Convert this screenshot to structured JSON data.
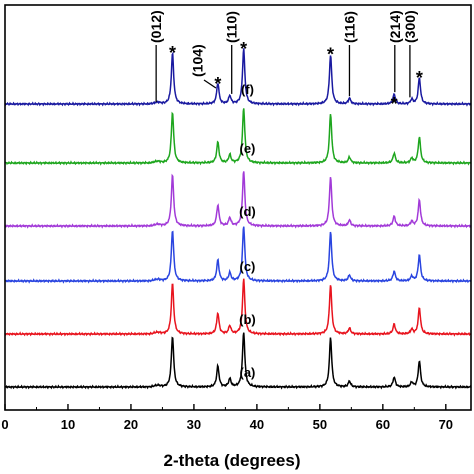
{
  "chart_data": {
    "type": "line",
    "title": "",
    "xlabel": "2-theta (degrees)",
    "ylabel": "",
    "xlim": [
      0,
      74
    ],
    "x_ticks": [
      0,
      10,
      20,
      30,
      40,
      50,
      60,
      70
    ],
    "x_tick_labels": [
      "0",
      "10",
      "20",
      "30",
      "40",
      "50",
      "60",
      "70"
    ],
    "grid": false,
    "legend": "none",
    "peaks": [
      {
        "x": 26.6,
        "rel": 0.88
      },
      {
        "x": 33.8,
        "rel": 0.36
      },
      {
        "x": 35.7,
        "rel": 0.14
      },
      {
        "x": 37.9,
        "rel": 0.95
      },
      {
        "x": 51.7,
        "rel": 0.85
      },
      {
        "x": 54.7,
        "rel": 0.1
      },
      {
        "x": 61.8,
        "rel": 0.17
      },
      {
        "x": 64.6,
        "rel": 0.08
      },
      {
        "x": 65.8,
        "rel": 0.45
      }
    ],
    "series": [
      {
        "name": "(a)",
        "color": "#000000"
      },
      {
        "name": "(b)",
        "color": "#e8141e"
      },
      {
        "name": "(c)",
        "color": "#2a45e0"
      },
      {
        "name": "(d)",
        "color": "#a23ad8"
      },
      {
        "name": "(e)",
        "color": "#1ea61e"
      },
      {
        "name": "(f)",
        "color": "#1a1aa0"
      }
    ],
    "annotations": [
      {
        "text": "(012)",
        "x": 24.0
      },
      {
        "text": "(104)",
        "x": 33.1
      },
      {
        "text": "(110)",
        "x": 36.0
      },
      {
        "text": "(116)",
        "x": 54.7
      },
      {
        "text": "(214)",
        "x": 61.9
      },
      {
        "text": "(300)",
        "x": 64.3
      }
    ],
    "star_marker": "*",
    "star_positions": [
      26.6,
      33.8,
      37.9,
      51.7,
      61.8,
      65.8
    ]
  }
}
